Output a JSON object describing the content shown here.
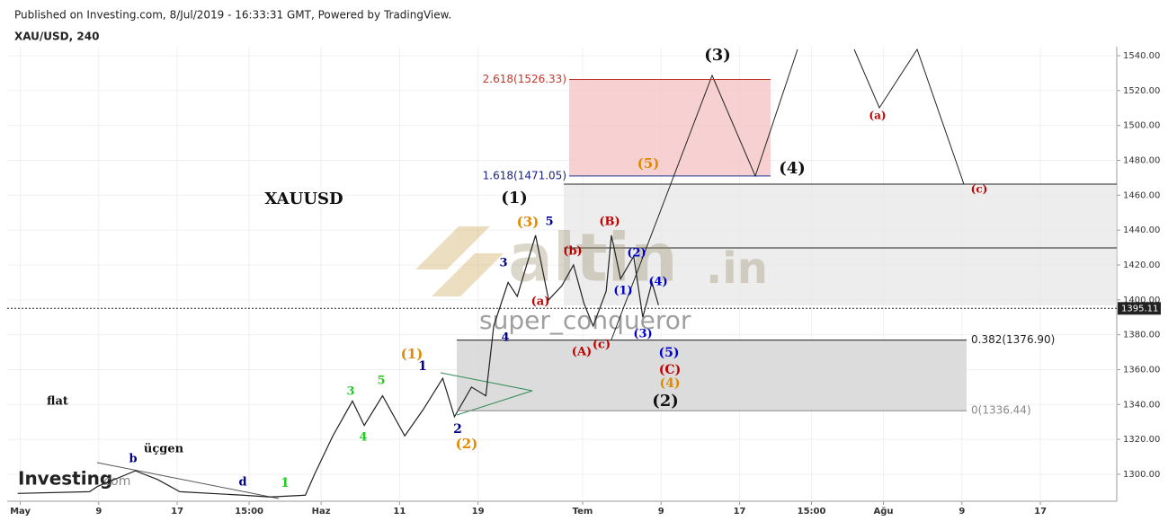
{
  "header": {
    "published": "Published on Investing.com, 8/Jul/2019 - 16:33:31 GMT, Powered by TradingView.",
    "symbol": "XAU/USD, 240"
  },
  "watermark": {
    "brand": "altin",
    "tld": ".in",
    "author": "super_conqueror",
    "logo": "Investing",
    "logo_suffix": ".com"
  },
  "chart_data": {
    "type": "line",
    "series": [
      {
        "name": "XAU/USD",
        "color": "#222222",
        "x": [
          -0.2,
          5.3,
          5.9,
          8.8,
          10.5,
          12.2,
          17,
          19.1,
          21.8,
          22.5,
          23.9,
          25.4,
          26.3,
          27.7,
          29.4,
          30.8,
          32.3,
          33.2,
          34.5,
          35.6,
          36.2,
          37.3,
          38,
          39.4,
          40.4,
          41.4,
          42.3,
          43.1,
          43.8,
          44.8,
          45.2,
          45.9,
          46.9,
          47.6,
          48.3,
          48.8
        ],
        "values": [
          1289,
          1290,
          1293,
          1302,
          1297,
          1290,
          1288,
          1287,
          1288,
          1300,
          1322,
          1342,
          1328,
          1345,
          1322,
          1337,
          1355,
          1333,
          1350,
          1345,
          1385,
          1410,
          1402,
          1437,
          1400,
          1408,
          1420,
          1398,
          1385,
          1405,
          1437,
          1412,
          1425,
          1390,
          1410,
          1397
        ]
      }
    ],
    "last_price": 1395.11,
    "xlim": [
      -1,
      83.7
    ],
    "xticks": [
      {
        "value": 0,
        "label": "May"
      },
      {
        "value": 6,
        "label": "9"
      },
      {
        "value": 12,
        "label": "17"
      },
      {
        "value": 17.5,
        "label": "15:00"
      },
      {
        "value": 23,
        "label": "Haz"
      },
      {
        "value": 29,
        "label": "11"
      },
      {
        "value": 35,
        "label": "19"
      },
      {
        "value": 43,
        "label": "Tem"
      },
      {
        "value": 49,
        "label": "9"
      },
      {
        "value": 55,
        "label": "17"
      },
      {
        "value": 60.5,
        "label": "15:00"
      },
      {
        "value": 66,
        "label": "Ağu"
      },
      {
        "value": 72,
        "label": "9"
      },
      {
        "value": 78,
        "label": "17"
      }
    ],
    "ylim": [
      1285,
      1547
    ],
    "yticks": [
      {
        "value": 1300,
        "label": "1300.00"
      },
      {
        "value": 1320,
        "label": "1320.00"
      },
      {
        "value": 1340,
        "label": "1340.00"
      },
      {
        "value": 1360,
        "label": "1360.00"
      },
      {
        "value": 1380,
        "label": "1380.00"
      },
      {
        "value": 1400,
        "label": "1400.00"
      },
      {
        "value": 1420,
        "label": "1420.00"
      },
      {
        "value": 1440,
        "label": "1440.00"
      },
      {
        "value": 1460,
        "label": "1460.00"
      },
      {
        "value": 1480,
        "label": "1480.00"
      },
      {
        "value": 1500,
        "label": "1500.00"
      },
      {
        "value": 1520,
        "label": "1520.00"
      },
      {
        "value": 1540,
        "label": "1540.00"
      }
    ],
    "grid": true,
    "levels": [
      {
        "label": "2.618(1526.33)",
        "value": 1526.33,
        "color": "#c0392b"
      },
      {
        "label": "1.618(1471.05)",
        "value": 1471.05,
        "color": "#1a237e"
      },
      {
        "label": "0.382(1376.90)",
        "value": 1376.9,
        "color": "#222222"
      },
      {
        "label": "0(1336.44)",
        "value": 1336.44,
        "color": "#888888"
      }
    ],
    "annotations": [
      "XAUUSD",
      "flat",
      "üçgen",
      "b",
      "d",
      "1",
      "3",
      "5",
      "4",
      "(1)",
      "1",
      "2",
      "(2)",
      "3",
      "4",
      "(3)",
      "5",
      "(1)",
      "(a)",
      "(b)",
      "(c)",
      "(A)",
      "(B)",
      "(1)",
      "(2)",
      "(3)",
      "(4)",
      "(5)",
      "(C)",
      "(4)",
      "(2)",
      "(5)",
      "(3)",
      "(4)",
      "(a)",
      "(c)"
    ]
  }
}
